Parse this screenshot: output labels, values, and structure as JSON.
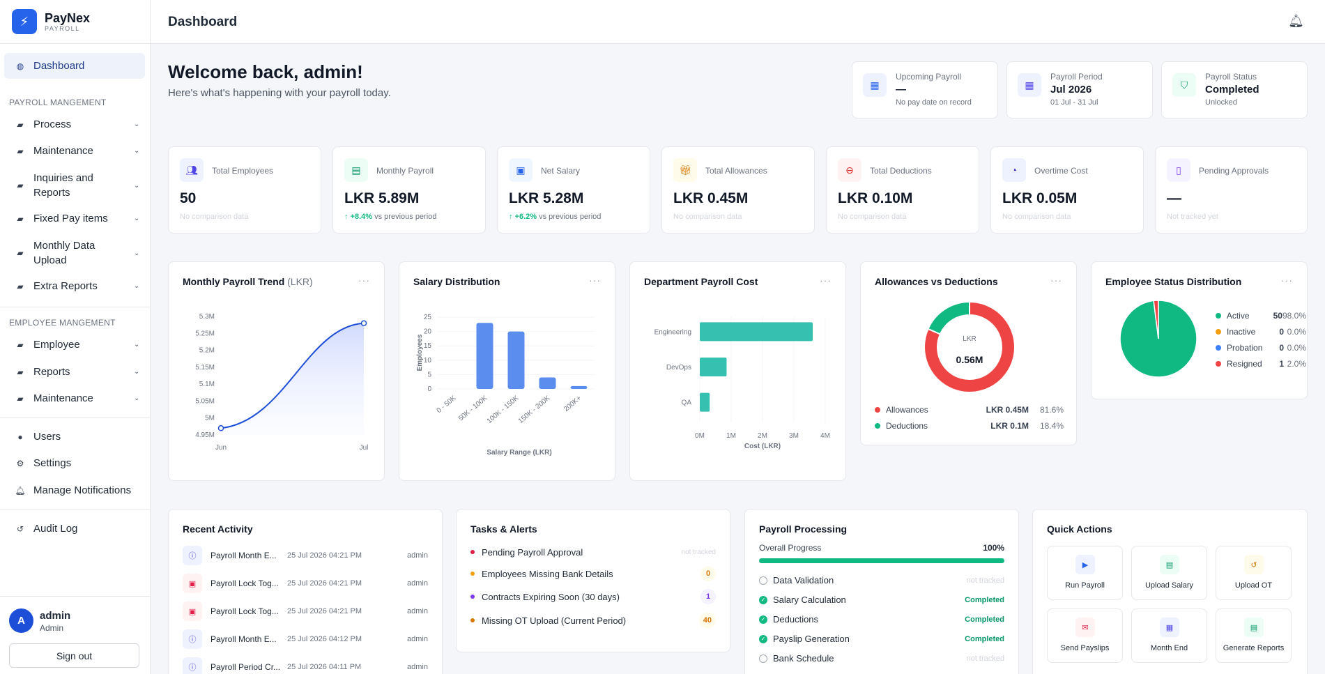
{
  "brand": {
    "name": "PayNex",
    "sub": "PAYROLL"
  },
  "sidebar": {
    "active": "Dashboard",
    "sections": [
      {
        "title": "PAYROLL MANGEMENT",
        "items": [
          "Process",
          "Maintenance",
          "Inquiries and Reports",
          "Fixed Pay items",
          "Monthly Data Upload",
          "Extra Reports"
        ]
      },
      {
        "title": "EMPLOYEE MANGEMENT",
        "items": [
          "Employee",
          "Reports",
          "Maintenance"
        ]
      }
    ],
    "bottom_items": [
      "Users",
      "Settings",
      "Manage Notifications"
    ],
    "audit": "Audit Log"
  },
  "user": {
    "initial": "A",
    "name": "admin",
    "role": "Admin",
    "signout": "Sign out"
  },
  "header": {
    "title": "Dashboard"
  },
  "welcome": {
    "title": "Welcome back, admin!",
    "subtitle": "Here's what's happening with your payroll today."
  },
  "top_cards": [
    {
      "label": "Upcoming Payroll",
      "value": "—",
      "sub": "No pay date on record"
    },
    {
      "label": "Payroll Period",
      "value": "Jul 2026",
      "sub": "01 Jul - 31 Jul"
    },
    {
      "label": "Payroll Status",
      "value": "Completed",
      "sub": "Unlocked"
    }
  ],
  "kpis": [
    {
      "label": "Total Employees",
      "value": "50",
      "sub": "No comparison data"
    },
    {
      "label": "Monthly Payroll",
      "value": "LKR 5.89M",
      "change": "+8.4%",
      "sub": "vs previous period"
    },
    {
      "label": "Net Salary",
      "value": "LKR 5.28M",
      "change": "+6.2%",
      "sub": "vs previous period"
    },
    {
      "label": "Total Allowances",
      "value": "LKR 0.45M",
      "sub": "No comparison data"
    },
    {
      "label": "Total Deductions",
      "value": "LKR 0.10M",
      "sub": "No comparison data"
    },
    {
      "label": "Overtime Cost",
      "value": "LKR 0.05M",
      "sub": "No comparison data"
    },
    {
      "label": "Pending Approvals",
      "value": "—",
      "sub": "Not tracked yet"
    }
  ],
  "chart_data": [
    {
      "type": "area",
      "title": "Monthly Payroll Trend",
      "title_unit": "(LKR)",
      "x": [
        "Jun",
        "Jul"
      ],
      "values": [
        4.97,
        5.28
      ],
      "yticks": [
        "5.3M",
        "5.25M",
        "5.2M",
        "5.15M",
        "5.1M",
        "5.05M",
        "5M",
        "4.95M"
      ],
      "ylim": [
        4.95,
        5.3
      ]
    },
    {
      "type": "bar",
      "title": "Salary Distribution",
      "categories": [
        "0 - 50K",
        "50K - 100K",
        "100K - 150K",
        "150K - 200K",
        "200K+"
      ],
      "values": [
        0,
        23,
        20,
        4,
        1
      ],
      "yticks": [
        "25",
        "20",
        "15",
        "10",
        "5",
        "0"
      ],
      "ylim": [
        0,
        25
      ],
      "xlabel": "Salary Range (LKR)",
      "ylabel": "Employees"
    },
    {
      "type": "bar",
      "orientation": "horizontal",
      "title": "Department Payroll Cost",
      "categories": [
        "Engineering",
        "DevOps",
        "QA"
      ],
      "values": [
        4.0,
        0.95,
        0.35
      ],
      "xticks": [
        "0M",
        "1M",
        "2M",
        "3M",
        "4M"
      ],
      "xlim": [
        0,
        4
      ],
      "xlabel": "Cost (LKR)"
    },
    {
      "type": "pie",
      "title": "Allowances vs Deductions",
      "center_label": "LKR",
      "center_value": "0.56M",
      "slices": [
        {
          "name": "Allowances",
          "value": "LKR 0.45M",
          "pct": "81.6%",
          "share": 81.6,
          "color": "#ef4444"
        },
        {
          "name": "Deductions",
          "value": "LKR 0.1M",
          "pct": "18.4%",
          "share": 18.4,
          "color": "#10b981"
        }
      ]
    },
    {
      "type": "pie",
      "title": "Employee Status Distribution",
      "slices": [
        {
          "name": "Active",
          "count": "50",
          "pct": "98.0%",
          "share": 98.0,
          "color": "#10b981"
        },
        {
          "name": "Inactive",
          "count": "0",
          "pct": "0.0%",
          "share": 0,
          "color": "#f59e0b"
        },
        {
          "name": "Probation",
          "count": "0",
          "pct": "0.0%",
          "share": 0,
          "color": "#3b82f6"
        },
        {
          "name": "Resigned",
          "count": "1",
          "pct": "2.0%",
          "share": 2.0,
          "color": "#ef4444"
        }
      ]
    }
  ],
  "recent_activity": {
    "title": "Recent Activity",
    "rows": [
      {
        "title": "Payroll Month E...",
        "date": "25 Jul 2026 04:21 PM",
        "user": "admin",
        "kind": "info"
      },
      {
        "title": "Payroll Lock Tog...",
        "date": "25 Jul 2026 04:21 PM",
        "user": "admin",
        "kind": "lock"
      },
      {
        "title": "Payroll Lock Tog...",
        "date": "25 Jul 2026 04:21 PM",
        "user": "admin",
        "kind": "lock"
      },
      {
        "title": "Payroll Month E...",
        "date": "25 Jul 2026 04:12 PM",
        "user": "admin",
        "kind": "info"
      },
      {
        "title": "Payroll Period Cr...",
        "date": "25 Jul 2026 04:11 PM",
        "user": "admin",
        "kind": "info"
      }
    ]
  },
  "tasks": {
    "title": "Tasks & Alerts",
    "rows": [
      {
        "label": "Pending Payroll Approval",
        "value": "not tracked",
        "dot": "#e11d48"
      },
      {
        "label": "Employees Missing Bank Details",
        "value": "0",
        "dot": "#f59e0b"
      },
      {
        "label": "Contracts Expiring Soon (30 days)",
        "value": "1",
        "dot": "#7c3aed"
      },
      {
        "label": "Missing OT Upload (Current Period)",
        "value": "40",
        "dot": "#d97706"
      }
    ]
  },
  "processing": {
    "title": "Payroll Processing",
    "overall_label": "Overall Progress",
    "overall_value": "100%",
    "progress": 1.0,
    "steps": [
      {
        "label": "Data Validation",
        "status": "not tracked",
        "done": false
      },
      {
        "label": "Salary Calculation",
        "status": "Completed",
        "done": true
      },
      {
        "label": "Deductions",
        "status": "Completed",
        "done": true
      },
      {
        "label": "Payslip Generation",
        "status": "Completed",
        "done": true
      },
      {
        "label": "Bank Schedule",
        "status": "not tracked",
        "done": false
      }
    ]
  },
  "quick_actions": {
    "title": "Quick Actions",
    "items": [
      "Run Payroll",
      "Upload Salary",
      "Upload OT",
      "Send Payslips",
      "Month End",
      "Generate Reports"
    ]
  }
}
